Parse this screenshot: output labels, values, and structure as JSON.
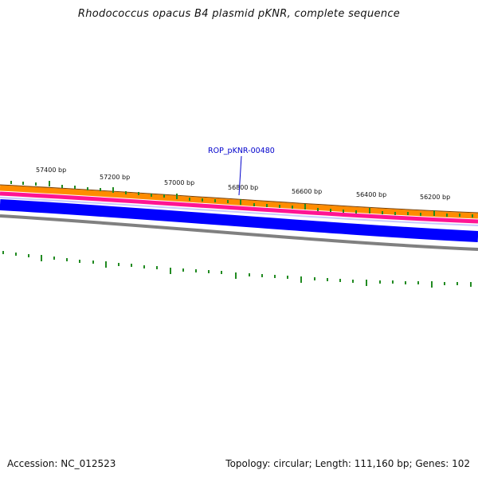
{
  "title": "Rhodococcus opacus B4 plasmid pKNR, complete sequence",
  "gene_label": "ROP_pKNR-00480",
  "ticks": [
    "57400 bp",
    "57200 bp",
    "57000 bp",
    "56800 bp",
    "56600 bp",
    "56400 bp",
    "56200 bp"
  ],
  "footer": {
    "accession": "Accession: NC_012523",
    "summary": "Topology: circular; Length: 111,160 bp; Genes: 102"
  },
  "colors": {
    "outer_ring": "#ff8c00",
    "pink_ring": "#ff1493",
    "blue_band": "#0000ff",
    "gray_ring": "#808080",
    "ticks": "#228b22",
    "gene_label": "#0000cc"
  }
}
